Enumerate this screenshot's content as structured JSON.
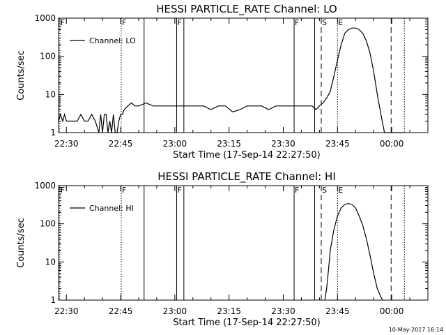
{
  "chart_data": [
    {
      "type": "line",
      "title": "HESSI PARTICLE_RATE Channel: LO",
      "xlabel": "Start Time (17-Sep-14 22:27:50)",
      "ylabel": "Counts/sec",
      "y_scale": "log",
      "xlim": [
        "22:27:50",
        "00:10:00"
      ],
      "ylim": [
        1,
        1000
      ],
      "x_ticks": [
        "22:30",
        "22:45",
        "23:00",
        "23:15",
        "23:30",
        "23:45",
        "00:00"
      ],
      "y_ticks": [
        "1",
        "10",
        "100",
        "1000"
      ],
      "legend": {
        "placement": "top-left",
        "label": "Channel: LO"
      },
      "series": [
        {
          "name": "Channel: LO",
          "x": [
            "22:27:50",
            "22:28:20",
            "22:29:00",
            "22:29:30",
            "22:30:00",
            "22:31:00",
            "22:32:00",
            "22:33:00",
            "22:34:00",
            "22:35:00",
            "22:36:00",
            "22:37:00",
            "22:38:00",
            "22:39:00",
            "22:39:30",
            "22:40:00",
            "22:40:30",
            "22:41:00",
            "22:41:30",
            "22:42:00",
            "22:42:30",
            "22:43:00",
            "22:43:30",
            "22:44:00",
            "22:44:30",
            "22:45:00",
            "22:45:30",
            "22:46:00",
            "22:47:00",
            "22:48:00",
            "22:49:00",
            "22:50:00",
            "22:52:00",
            "22:54:00",
            "22:56:00",
            "22:58:00",
            "23:00:00",
            "23:02:00",
            "23:04:00",
            "23:06:00",
            "23:08:00",
            "23:10:00",
            "23:12:00",
            "23:14:00",
            "23:16:00",
            "23:18:00",
            "23:20:00",
            "23:22:00",
            "23:24:00",
            "23:26:00",
            "23:28:00",
            "23:30:00",
            "23:32:00",
            "23:34:00",
            "23:36:00",
            "23:38:00",
            "23:39:00",
            "23:40:00",
            "23:41:00",
            "23:42:00",
            "23:43:00",
            "23:44:00",
            "23:45:00",
            "23:46:00",
            "23:47:00",
            "23:48:00",
            "23:49:00",
            "23:50:00",
            "23:51:00",
            "23:52:00",
            "23:53:00",
            "23:54:00",
            "23:55:00",
            "23:56:00",
            "23:57:00",
            "23:58:00",
            "23:59:00",
            "00:00:00",
            "00:01:00",
            "00:02:00",
            "00:02:30",
            "00:03:00",
            "00:03:30",
            "00:04:00"
          ],
          "values": [
            2,
            3,
            2,
            3,
            2,
            2,
            2,
            2,
            3,
            2,
            2,
            3,
            2,
            1,
            3,
            1,
            3,
            3,
            1,
            2,
            1,
            3,
            1,
            1,
            2,
            3,
            3,
            4,
            5,
            6,
            5,
            5,
            6,
            5,
            5,
            5,
            5,
            5,
            5,
            5,
            5,
            4,
            5,
            5,
            3.5,
            4,
            5,
            5,
            5,
            4,
            5,
            5,
            5,
            5,
            5,
            5,
            4,
            5,
            6,
            8,
            12,
            30,
            80,
            200,
            400,
            500,
            550,
            550,
            500,
            400,
            250,
            120,
            40,
            10,
            3,
            1,
            1,
            1,
            1,
            1,
            1,
            1,
            1,
            1
          ]
        }
      ],
      "vertical_markers": [
        {
          "time": "22:28:10",
          "style": "dotted",
          "label": "F"
        },
        {
          "time": "22:45:10",
          "style": "dotted",
          "label": "F"
        },
        {
          "time": "22:51:30",
          "style": "solid",
          "label": ""
        },
        {
          "time": "23:00:30",
          "style": "solid",
          "label": "F"
        },
        {
          "time": "23:02:30",
          "style": "solid",
          "label": ""
        },
        {
          "time": "23:33:00",
          "style": "solid",
          "label": "F"
        },
        {
          "time": "23:38:40",
          "style": "solid",
          "label": ""
        },
        {
          "time": "23:40:30",
          "style": "dashed",
          "label": "S"
        },
        {
          "time": "23:45:00",
          "style": "dotted",
          "label": "E"
        },
        {
          "time": "23:59:50",
          "style": "dashed",
          "label": ""
        },
        {
          "time": "00:03:30",
          "style": "dotted",
          "label": ""
        }
      ]
    },
    {
      "type": "line",
      "title": "HESSI PARTICLE_RATE Channel: HI",
      "xlabel": "Start Time (17-Sep-14 22:27:50)",
      "ylabel": "Counts/sec",
      "y_scale": "log",
      "xlim": [
        "22:27:50",
        "00:10:00"
      ],
      "ylim": [
        1,
        1000
      ],
      "x_ticks": [
        "22:30",
        "22:45",
        "23:00",
        "23:15",
        "23:30",
        "23:45",
        "00:00"
      ],
      "y_ticks": [
        "1",
        "10",
        "100",
        "1000"
      ],
      "legend": {
        "placement": "top-left",
        "label": "Channel: HI"
      },
      "series": [
        {
          "name": "Channel: HI",
          "x": [
            "23:41:30",
            "23:42:00",
            "23:42:30",
            "23:43:00",
            "23:44:00",
            "23:45:00",
            "23:46:00",
            "23:47:00",
            "23:48:00",
            "23:49:00",
            "23:50:00",
            "23:51:00",
            "23:52:00",
            "23:53:00",
            "23:54:00",
            "23:55:00",
            "23:56:00",
            "23:57:00",
            "23:57:30"
          ],
          "values": [
            1,
            2,
            6,
            20,
            70,
            160,
            260,
            320,
            340,
            320,
            260,
            160,
            90,
            40,
            15,
            5,
            2,
            1.2,
            1
          ]
        }
      ],
      "vertical_markers": [
        {
          "time": "22:28:10",
          "style": "dotted",
          "label": "F"
        },
        {
          "time": "22:45:10",
          "style": "dotted",
          "label": "F"
        },
        {
          "time": "22:51:30",
          "style": "solid",
          "label": ""
        },
        {
          "time": "23:00:30",
          "style": "solid",
          "label": "F"
        },
        {
          "time": "23:02:30",
          "style": "solid",
          "label": ""
        },
        {
          "time": "23:33:00",
          "style": "solid",
          "label": "F"
        },
        {
          "time": "23:38:40",
          "style": "solid",
          "label": ""
        },
        {
          "time": "23:40:30",
          "style": "dashed",
          "label": "S"
        },
        {
          "time": "23:45:00",
          "style": "dotted",
          "label": "E"
        },
        {
          "time": "23:59:50",
          "style": "dashed",
          "label": ""
        },
        {
          "time": "00:03:30",
          "style": "dotted",
          "label": ""
        }
      ]
    }
  ],
  "footer": {
    "timestamp": "10-May-2017 16:14"
  }
}
